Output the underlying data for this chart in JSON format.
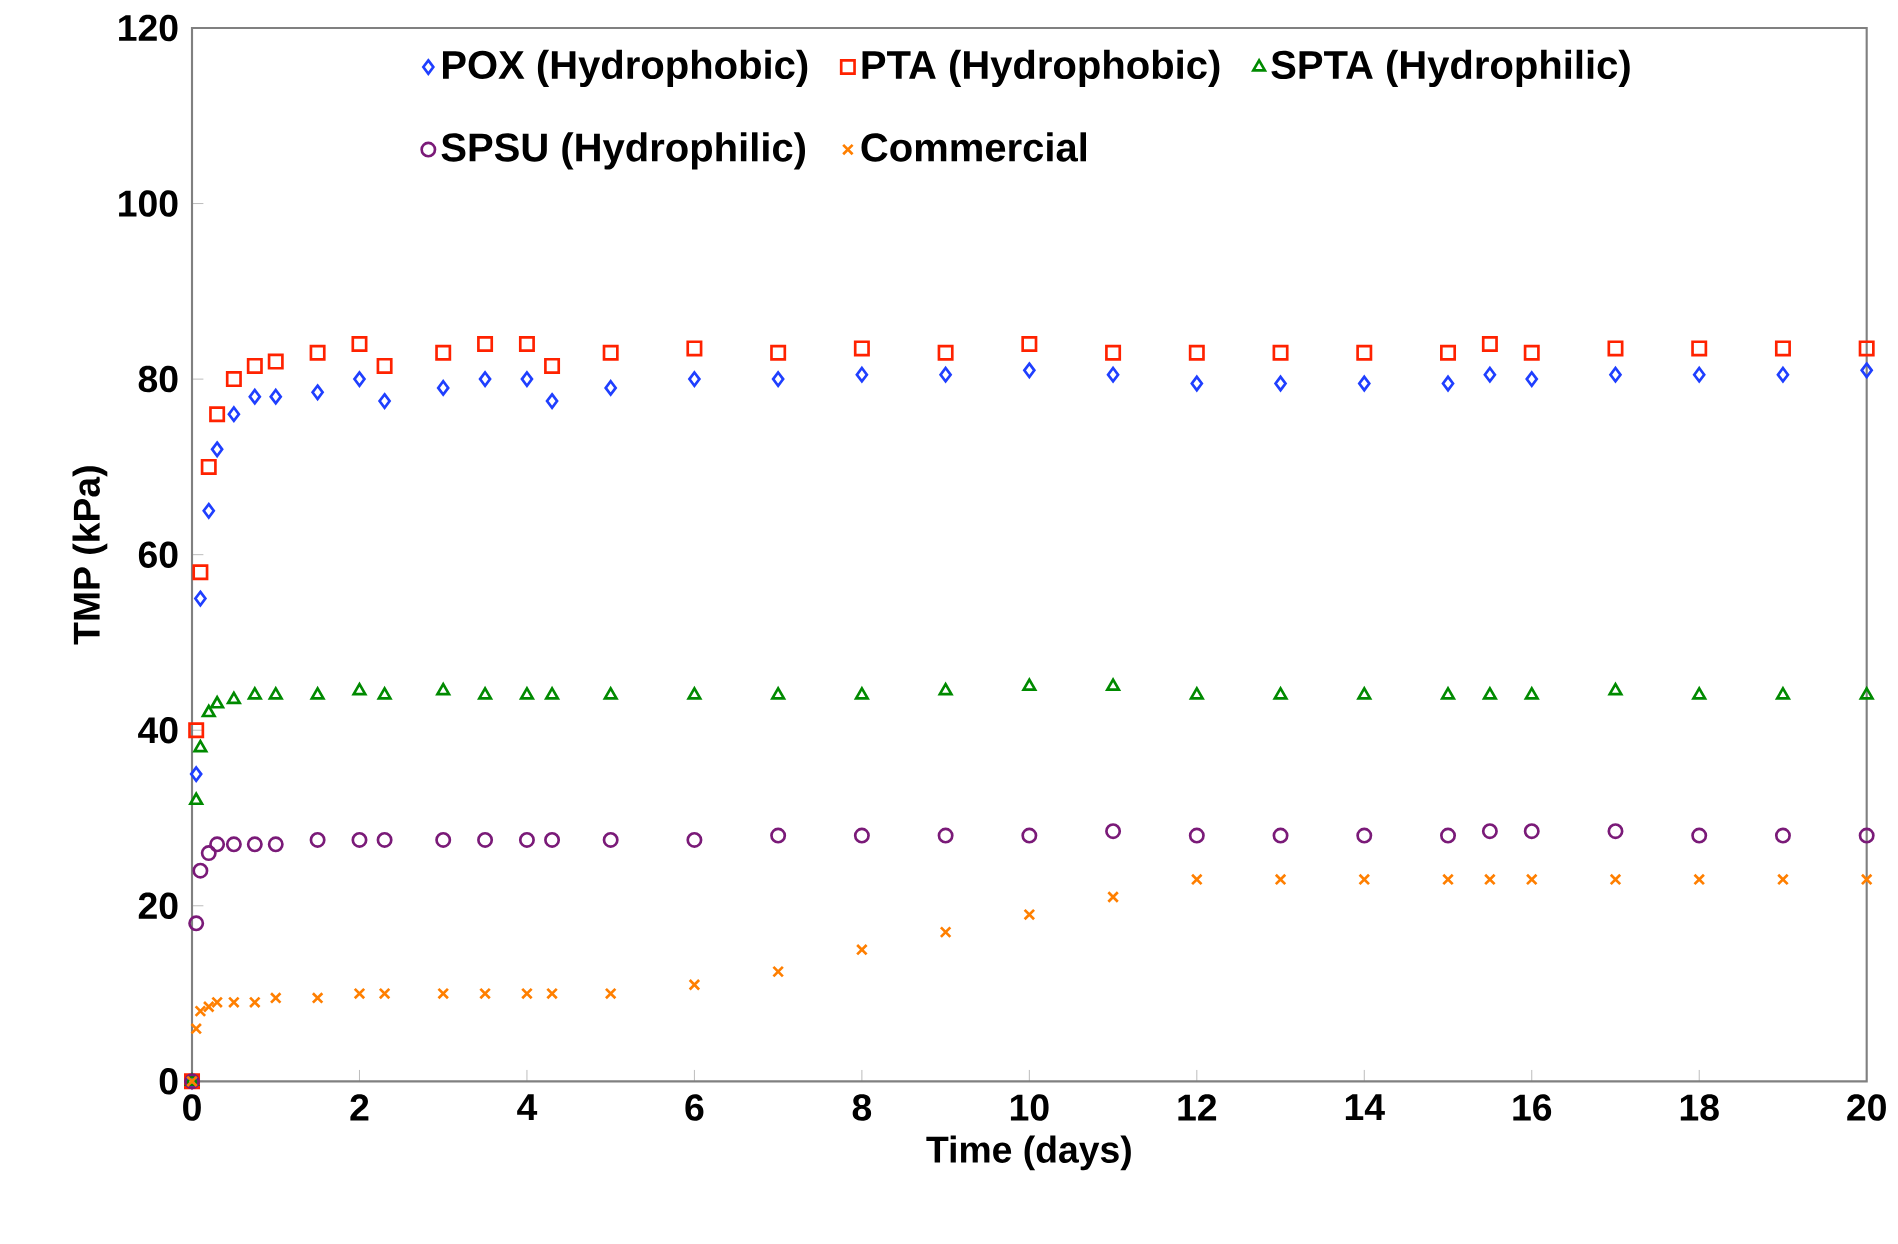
{
  "chart_data": {
    "type": "scatter",
    "xlabel": "Time (days)",
    "ylabel": "TMP (kPa)",
    "x": [
      0,
      0.05,
      0.1,
      0.2,
      0.3,
      0.5,
      0.75,
      1,
      1.5,
      2,
      2.3,
      3,
      3.5,
      4,
      4.3,
      5,
      6,
      7,
      8,
      9,
      10,
      11,
      12,
      13,
      14,
      15,
      15.5,
      16,
      17,
      18,
      19,
      20
    ],
    "series": [
      {
        "name": "POX (Hydrophobic)",
        "color": "#1f3fff",
        "marker": "diamond",
        "values": [
          0,
          35,
          55,
          65,
          72,
          76,
          78,
          78,
          78.5,
          80,
          77.5,
          79,
          80,
          80,
          77.5,
          79,
          80,
          80,
          80.5,
          80.5,
          81,
          80.5,
          79.5,
          79.5,
          79.5,
          79.5,
          80.5,
          80,
          80.5,
          80.5,
          80.5,
          81
        ]
      },
      {
        "name": "PTA (Hydrophobic)",
        "color": "#ff2200",
        "marker": "square",
        "values": [
          0,
          40,
          58,
          70,
          76,
          80,
          81.5,
          82,
          83,
          84,
          81.5,
          83,
          84,
          84,
          81.5,
          83,
          83.5,
          83,
          83.5,
          83,
          84,
          83,
          83,
          83,
          83,
          83,
          84,
          83,
          83.5,
          83.5,
          83.5,
          83.5
        ]
      },
      {
        "name": "SPTA (Hydrophilic)",
        "color": "#008a00",
        "marker": "triangle",
        "values": [
          0,
          32,
          38,
          42,
          43,
          43.5,
          44,
          44,
          44,
          44.5,
          44,
          44.5,
          44,
          44,
          44,
          44,
          44,
          44,
          44,
          44.5,
          45,
          45,
          44,
          44,
          44,
          44,
          44,
          44,
          44.5,
          44,
          44,
          44
        ]
      },
      {
        "name": "SPSU (Hydrophilic)",
        "color": "#7a1a78",
        "marker": "circle",
        "values": [
          0,
          18,
          24,
          26,
          27,
          27,
          27,
          27,
          27.5,
          27.5,
          27.5,
          27.5,
          27.5,
          27.5,
          27.5,
          27.5,
          27.5,
          28,
          28,
          28,
          28,
          28.5,
          28,
          28,
          28,
          28,
          28.5,
          28.5,
          28.5,
          28,
          28,
          28
        ]
      },
      {
        "name": "Commercial",
        "color": "#ff7f00",
        "marker": "cross",
        "values": [
          0,
          6,
          8,
          8.5,
          9,
          9,
          9,
          9.5,
          9.5,
          10,
          10,
          10,
          10,
          10,
          10,
          10,
          11,
          12.5,
          15,
          17,
          19,
          21,
          23,
          23,
          23,
          23,
          23,
          23,
          23,
          23,
          23,
          23
        ]
      }
    ],
    "xlim": [
      0,
      20
    ],
    "xticks": [
      0,
      2,
      4,
      6,
      8,
      10,
      12,
      14,
      16,
      18,
      20
    ],
    "ylim": [
      0,
      120
    ],
    "yticks": [
      0,
      20,
      40,
      60,
      80,
      100,
      120
    ],
    "grid": false,
    "legend": "top"
  }
}
